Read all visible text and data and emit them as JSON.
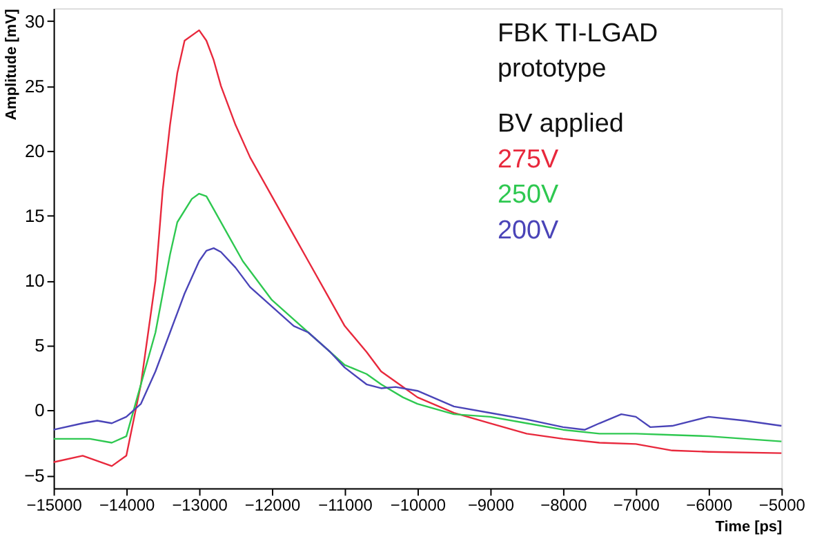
{
  "chart_data": {
    "type": "line",
    "xlabel": "Time [ps]",
    "ylabel": "Amplitude [mV]",
    "annotations": [
      "FBK TI-LGAD prototype"
    ],
    "legend_title": "BV applied",
    "legend": "top right",
    "grid": false,
    "marker": "none",
    "line_style": "solid",
    "xlim": [
      -15000,
      -5000
    ],
    "xticks": [
      -15000,
      -14000,
      -13000,
      -12000,
      -11000,
      -10000,
      -9000,
      -8000,
      -7000,
      -6000,
      -5000
    ],
    "ylim": [
      -6,
      31
    ],
    "yticks": [
      -5,
      0,
      5,
      10,
      15,
      20,
      25,
      30
    ],
    "series": [
      {
        "name": "275V",
        "color": "#e8283c",
        "x": [
          -15000,
          -14600,
          -14200,
          -14000,
          -13800,
          -13600,
          -13500,
          -13400,
          -13300,
          -13200,
          -13000,
          -12900,
          -12800,
          -12700,
          -12500,
          -12300,
          -12000,
          -11700,
          -11500,
          -11200,
          -11000,
          -10700,
          -10500,
          -10200,
          -10000,
          -9500,
          -9000,
          -8500,
          -8000,
          -7500,
          -7000,
          -6500,
          -6000,
          -5000
        ],
        "values": [
          -4,
          -3.5,
          -4.3,
          -3.5,
          2,
          10,
          17,
          22,
          26,
          28.5,
          29.3,
          28.5,
          27,
          25,
          22,
          19.5,
          16.5,
          13.5,
          11.5,
          8.5,
          6.5,
          4.5,
          3,
          1.8,
          1,
          -0.2,
          -1,
          -1.8,
          -2.2,
          -2.5,
          -2.6,
          -3.1,
          -3.2,
          -3.3
        ]
      },
      {
        "name": "250V",
        "color": "#2ec850",
        "x": [
          -15000,
          -14500,
          -14200,
          -14000,
          -13800,
          -13600,
          -13500,
          -13400,
          -13300,
          -13100,
          -13000,
          -12900,
          -12800,
          -12600,
          -12400,
          -12200,
          -12000,
          -11700,
          -11500,
          -11200,
          -11000,
          -10700,
          -10500,
          -10200,
          -10000,
          -9500,
          -9000,
          -8500,
          -8000,
          -7500,
          -7000,
          -6500,
          -6000,
          -5000
        ],
        "values": [
          -2.2,
          -2.2,
          -2.5,
          -2,
          2,
          6,
          9,
          12,
          14.5,
          16.3,
          16.7,
          16.5,
          15.5,
          13.5,
          11.5,
          10,
          8.5,
          7,
          6,
          4.5,
          3.5,
          2.8,
          2,
          1,
          0.5,
          -0.3,
          -0.5,
          -1,
          -1.5,
          -1.8,
          -1.8,
          -1.9,
          -2,
          -2.4
        ]
      },
      {
        "name": "200V",
        "color": "#4a44b8",
        "x": [
          -15000,
          -14600,
          -14400,
          -14200,
          -14000,
          -13800,
          -13600,
          -13400,
          -13200,
          -13000,
          -12900,
          -12800,
          -12700,
          -12500,
          -12300,
          -12000,
          -11700,
          -11500,
          -11200,
          -11000,
          -10700,
          -10500,
          -10300,
          -10000,
          -9500,
          -9000,
          -8500,
          -8000,
          -7700,
          -7500,
          -7200,
          -7000,
          -6800,
          -6500,
          -6000,
          -5500,
          -5000
        ],
        "values": [
          -1.5,
          -1,
          -0.8,
          -1,
          -0.5,
          0.5,
          3,
          6,
          9,
          11.5,
          12.3,
          12.5,
          12.2,
          11,
          9.5,
          8,
          6.5,
          6,
          4.5,
          3.3,
          2,
          1.7,
          1.8,
          1.5,
          0.3,
          -0.2,
          -0.7,
          -1.3,
          -1.5,
          -1,
          -0.3,
          -0.5,
          -1.3,
          -1.2,
          -0.5,
          -0.8,
          -1.2
        ]
      }
    ]
  }
}
